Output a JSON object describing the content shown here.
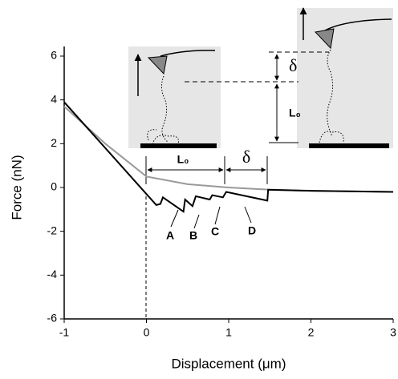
{
  "chart_data": {
    "type": "line",
    "xlabel": "Displacement (μm)",
    "ylabel": "Force (nN)",
    "xlim": [
      -1,
      3
    ],
    "ylim": [
      -6,
      6
    ],
    "xticks": [
      -1,
      0,
      1,
      2,
      3
    ],
    "yticks": [
      -6,
      -4,
      -2,
      0,
      2,
      4,
      6
    ],
    "series": [
      {
        "color": "#999999",
        "x": [
          -1,
          -0.5,
          0,
          0.5,
          1,
          1.5,
          2,
          3
        ],
        "values": [
          3.7,
          2.0,
          0.5,
          0.15,
          0.0,
          -0.1,
          -0.15,
          -0.2
        ]
      },
      {
        "color": "#000000",
        "x": [
          -1,
          0,
          0.12,
          0.17,
          0.2,
          0.45,
          0.47,
          0.56,
          0.6,
          0.77,
          0.8,
          0.93,
          0.97,
          1.47,
          1.48,
          2,
          3
        ],
        "values": [
          3.9,
          -0.3,
          -0.8,
          -0.75,
          -0.45,
          -1.1,
          -0.55,
          -0.85,
          -0.4,
          -0.55,
          -0.35,
          -0.45,
          -0.2,
          -0.6,
          -0.1,
          -0.15,
          -0.2
        ]
      }
    ],
    "annotations": [
      "L₀",
      "δ",
      "A",
      "B",
      "C",
      "D",
      "δ",
      "L₀"
    ]
  }
}
